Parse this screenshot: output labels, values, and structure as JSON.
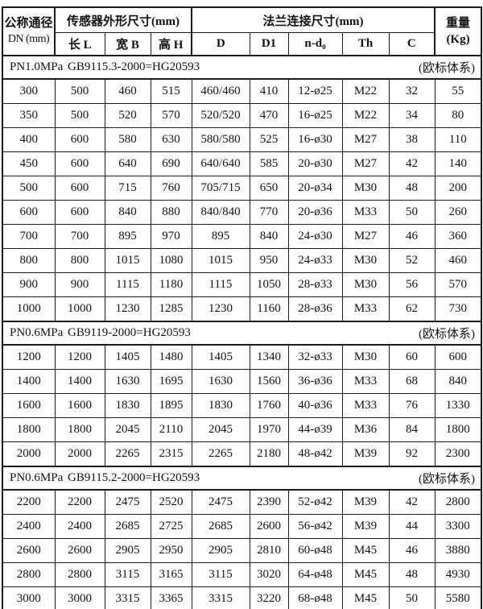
{
  "header": {
    "dn_line1": "公称通径",
    "dn_line2": "DN (mm)",
    "sensor_group": "传感器外形尺寸(mm)",
    "flange_group": "法兰连接尺寸(mm)",
    "sub_cols": [
      "长 L",
      "宽 B",
      "高 H",
      "D",
      "D1",
      "n-d₀",
      "Th",
      "C"
    ],
    "weight_line1": "重量",
    "weight_line2": "(Kg)"
  },
  "colors": {
    "border": "#1c1c1c",
    "text": "#111111",
    "background": "#ffffff"
  },
  "sections": [
    {
      "pressure": "PN1.0MPa",
      "standard": "GB9115.3-2000=HG20593",
      "system": "(欧标体系)",
      "rows": [
        [
          "300",
          "500",
          "460",
          "515",
          "460/460",
          "410",
          "12-ø25",
          "M22",
          "32",
          "55"
        ],
        [
          "350",
          "500",
          "520",
          "570",
          "520/520",
          "470",
          "16-ø25",
          "M22",
          "34",
          "80"
        ],
        [
          "400",
          "600",
          "580",
          "630",
          "580/580",
          "525",
          "16-ø30",
          "M27",
          "38",
          "110"
        ],
        [
          "450",
          "600",
          "640",
          "690",
          "640/640",
          "585",
          "20-ø30",
          "M27",
          "42",
          "140"
        ],
        [
          "500",
          "600",
          "715",
          "760",
          "705/715",
          "650",
          "20-ø34",
          "M30",
          "48",
          "200"
        ],
        [
          "600",
          "600",
          "840",
          "880",
          "840/840",
          "770",
          "20-ø36",
          "M33",
          "50",
          "260"
        ],
        [
          "700",
          "700",
          "895",
          "970",
          "895",
          "840",
          "24-ø30",
          "M27",
          "46",
          "360"
        ],
        [
          "800",
          "800",
          "1015",
          "1080",
          "1015",
          "950",
          "24-ø33",
          "M30",
          "52",
          "460"
        ],
        [
          "900",
          "900",
          "1115",
          "1180",
          "1115",
          "1050",
          "28-ø33",
          "M30",
          "56",
          "570"
        ],
        [
          "1000",
          "1000",
          "1230",
          "1285",
          "1230",
          "1160",
          "28-ø36",
          "M33",
          "62",
          "730"
        ]
      ]
    },
    {
      "pressure": "PN0.6MPa",
      "standard": "GB9119-2000=HG20593",
      "system": "(欧标体系)",
      "rows": [
        [
          "1200",
          "1200",
          "1405",
          "1480",
          "1405",
          "1340",
          "32-ø33",
          "M30",
          "60",
          "600"
        ],
        [
          "1400",
          "1400",
          "1630",
          "1695",
          "1630",
          "1560",
          "36-ø36",
          "M33",
          "68",
          "840"
        ],
        [
          "1600",
          "1600",
          "1830",
          "1895",
          "1830",
          "1760",
          "40-ø36",
          "M33",
          "76",
          "1330"
        ],
        [
          "1800",
          "1800",
          "2045",
          "2110",
          "2045",
          "1970",
          "44-ø39",
          "M36",
          "84",
          "1800"
        ],
        [
          "2000",
          "2000",
          "2265",
          "2315",
          "2265",
          "2180",
          "48-ø42",
          "M39",
          "92",
          "2300"
        ]
      ]
    },
    {
      "pressure": "PN0.6MPa",
      "standard": "GB9115.2-2000=HG20593",
      "system": "(欧标体系)",
      "rows": [
        [
          "2200",
          "2200",
          "2475",
          "2520",
          "2475",
          "2390",
          "52-ø42",
          "M39",
          "42",
          "2800"
        ],
        [
          "2400",
          "2400",
          "2685",
          "2725",
          "2685",
          "2600",
          "56-ø42",
          "M39",
          "44",
          "3300"
        ],
        [
          "2600",
          "2600",
          "2905",
          "2950",
          "2905",
          "2810",
          "60-ø48",
          "M45",
          "46",
          "3880"
        ],
        [
          "2800",
          "2800",
          "3115",
          "3165",
          "3115",
          "3020",
          "64-ø48",
          "M45",
          "48",
          "4930"
        ],
        [
          "3000",
          "3000",
          "3315",
          "3365",
          "3315",
          "3220",
          "68-ø48",
          "M45",
          "50",
          "5580"
        ]
      ]
    }
  ]
}
